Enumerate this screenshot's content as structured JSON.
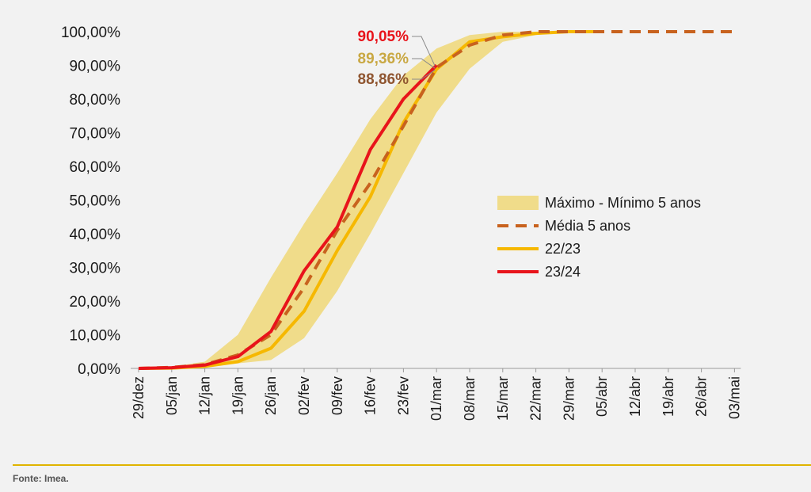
{
  "chart_data": {
    "type": "line",
    "categories": [
      "29/dez",
      "05/jan",
      "12/jan",
      "19/jan",
      "26/jan",
      "02/fev",
      "09/fev",
      "16/fev",
      "23/fev",
      "01/mar",
      "08/mar",
      "15/mar",
      "22/mar",
      "29/mar",
      "05/abr",
      "12/abr",
      "19/abr",
      "26/abr",
      "03/mai"
    ],
    "yticks": [
      "0,00%",
      "10,00%",
      "20,00%",
      "30,00%",
      "40,00%",
      "50,00%",
      "60,00%",
      "70,00%",
      "80,00%",
      "90,00%",
      "100,00%"
    ],
    "ylim": [
      0,
      100
    ],
    "band": {
      "name": "Máximo - Mínimo 5 anos",
      "color": "#f0dc8a",
      "max": [
        0,
        0.5,
        2,
        10,
        27,
        43,
        58,
        74,
        87,
        95,
        99,
        100,
        100,
        100,
        100,
        null,
        null,
        null,
        null
      ],
      "min": [
        0,
        0,
        0.5,
        1.5,
        2.5,
        9,
        23,
        40,
        58,
        76,
        89,
        97,
        99,
        100,
        100,
        null,
        null,
        null,
        null
      ]
    },
    "series": [
      {
        "name": "Média 5 anos",
        "color": "#c8621e",
        "style": "dashed",
        "values": [
          0,
          0.3,
          1.1,
          4,
          10,
          24,
          41,
          55,
          72,
          89.36,
          96,
          99,
          100,
          100,
          100,
          100,
          100,
          100,
          100
        ]
      },
      {
        "name": "22/23",
        "color": "#f6b800",
        "style": "solid",
        "values": [
          0,
          0.1,
          0.6,
          2,
          6,
          17,
          35,
          51,
          73,
          88.86,
          97,
          98.5,
          99.5,
          100,
          100,
          null,
          null,
          null,
          null
        ]
      },
      {
        "name": "23/24",
        "color": "#e8141b",
        "style": "solid",
        "values": [
          0,
          0.2,
          1,
          3.5,
          11,
          29,
          42,
          65,
          80,
          90.05,
          null,
          null,
          null,
          null,
          null,
          null,
          null,
          null,
          null
        ]
      }
    ],
    "annotations": [
      {
        "text": "90,05%",
        "color": "#e8141b"
      },
      {
        "text": "89,36%",
        "color": "#c9a843"
      },
      {
        "text": "88,86%",
        "color": "#8f5530"
      }
    ],
    "legend_position": "right",
    "grid": false
  },
  "footer": {
    "source": "Fonte: Imea."
  }
}
